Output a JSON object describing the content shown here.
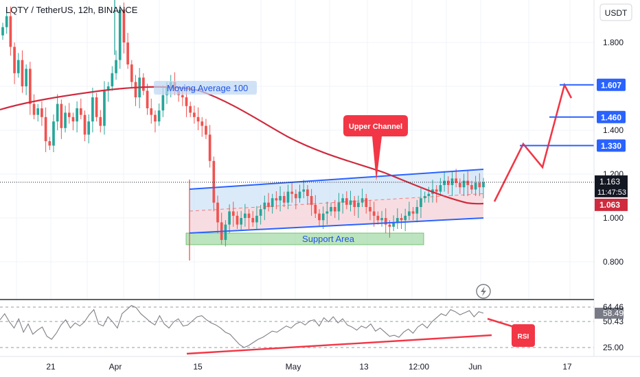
{
  "header": {
    "symbol_title": "LQTY / TetherUS, 12h, BINANCE",
    "currency_label": "USDT"
  },
  "chart_data": [
    {
      "type": "candlestick",
      "title": "LQTY / TetherUS, 12h, BINANCE",
      "price_axis_ticks": [
        0.8,
        1.0,
        1.2,
        1.4,
        1.6,
        1.8
      ],
      "price_axis_labels": [
        "0.800",
        "1.000",
        "1.200",
        "1.400",
        "1.600",
        "1.800"
      ],
      "ylim": [
        0.58,
        2.0
      ],
      "time_axis_labels": [
        "21",
        "Apr",
        "15",
        "May",
        "13",
        "12:00",
        "Jun",
        "17"
      ],
      "current_price": "1.163",
      "countdown": "11:47:53",
      "moving_average_value": "1.063",
      "price_levels": [
        {
          "label": "1.607",
          "value": 1.607
        },
        {
          "label": "1.460",
          "value": 1.46
        },
        {
          "label": "1.330",
          "value": 1.33
        }
      ],
      "annotations": {
        "moving_average": "Moving Average 100",
        "upper_channel": "Upper Channel",
        "support_area": "Support Area"
      },
      "colors": {
        "up": "#26a69a",
        "down": "#ef5350",
        "moving_average": "#cf2a3d",
        "channel": "#2962ff",
        "projection": "#f23645",
        "support_fill": "#9fd8a4",
        "channel_fill": "#cfe3f7"
      },
      "ohlc_close_path": [
        1.87,
        1.92,
        1.78,
        1.66,
        1.72,
        1.6,
        1.68,
        1.52,
        1.47,
        1.5,
        1.46,
        1.35,
        1.33,
        1.44,
        1.52,
        1.41,
        1.48,
        1.46,
        1.44,
        1.5,
        1.47,
        1.38,
        1.44,
        1.55,
        1.46,
        1.42,
        1.58,
        1.6,
        1.66,
        1.72,
        1.95,
        1.8,
        1.7,
        1.62,
        1.55,
        1.64,
        1.58,
        1.5,
        1.47,
        1.44,
        1.49,
        1.56,
        1.6,
        1.62,
        1.58,
        1.56,
        1.55,
        1.51,
        1.48,
        1.46,
        1.44,
        1.42,
        1.38,
        1.26,
        1.07,
        0.98,
        0.9,
        0.97,
        1.03,
        1.01,
        0.97,
        1.0,
        1.02,
        1.0,
        0.98,
        1.01,
        1.04,
        1.07,
        1.05,
        1.09,
        1.08,
        1.1,
        1.07,
        1.12,
        1.11,
        1.09,
        1.12,
        1.13,
        1.1,
        1.06,
        1.02,
        0.99,
        1.02,
        1.03,
        1.05,
        1.03,
        1.07,
        1.09,
        1.06,
        1.08,
        1.05,
        1.07,
        1.09,
        1.05,
        1.03,
        1.01,
        0.99,
        1.0,
        0.97,
        0.96,
        0.98,
        1.0,
        0.99,
        1.01,
        1.03,
        1.02,
        1.05,
        1.09,
        1.1,
        1.11,
        1.13,
        1.12,
        1.15,
        1.17,
        1.15,
        1.18,
        1.16,
        1.14,
        1.17,
        1.15,
        1.13,
        1.16,
        1.14,
        1.163
      ]
    },
    {
      "type": "line",
      "title": "",
      "yticks": [
        25.0,
        50.43,
        58.49,
        64.46
      ],
      "ytick_labels": [
        "25.00",
        "50.43",
        "58.49",
        "64.46"
      ],
      "ylim": [
        22,
        70
      ],
      "annotation": "RSI",
      "rsi_path": [
        52,
        58,
        50,
        44,
        53,
        40,
        48,
        38,
        42,
        45,
        36,
        33,
        39,
        47,
        52,
        44,
        49,
        46,
        50,
        57,
        62,
        48,
        46,
        55,
        50,
        44,
        58,
        62,
        66,
        64,
        58,
        54,
        50,
        47,
        56,
        48,
        44,
        50,
        53,
        46,
        47,
        51,
        55,
        56,
        52,
        49,
        47,
        44,
        40,
        38,
        33,
        28,
        25,
        27,
        30,
        33,
        35,
        38,
        41,
        40,
        43,
        46,
        44,
        48,
        50,
        47,
        51,
        52,
        46,
        54,
        50,
        55,
        49,
        53,
        47,
        45,
        42,
        46,
        44,
        48,
        41,
        44,
        40,
        36,
        37,
        35,
        40,
        43,
        39,
        45,
        48,
        44,
        50,
        54,
        58,
        56,
        62,
        60,
        57,
        59,
        61,
        55,
        60,
        58.49
      ]
    }
  ]
}
